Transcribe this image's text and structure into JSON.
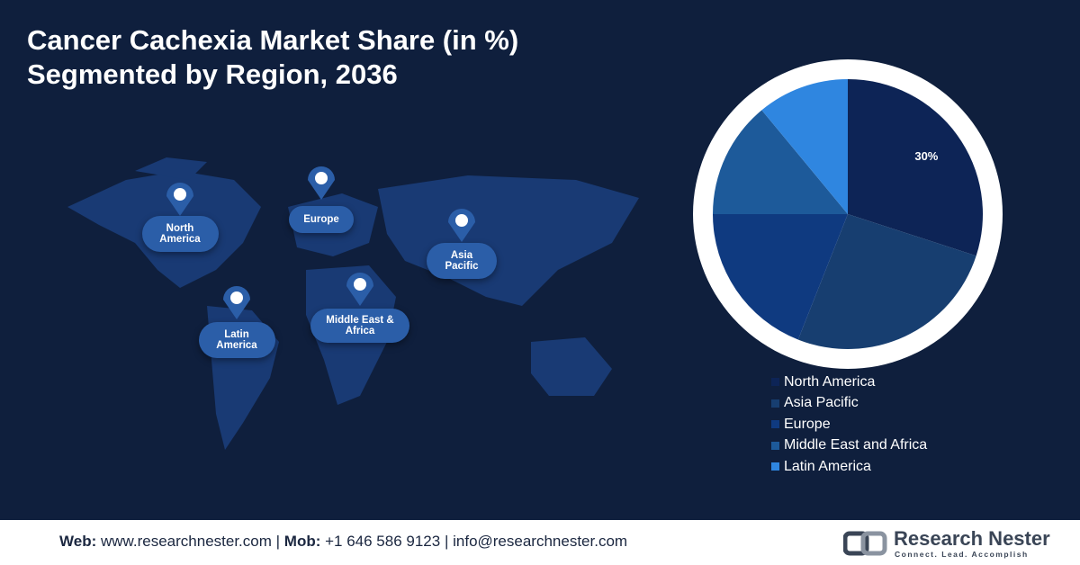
{
  "chart_data": {
    "type": "pie",
    "title_lines": [
      "Cancer Cachexia Market Share (in %)",
      "Segmented by Region, 2036"
    ],
    "categories": [
      "North America",
      "Asia Pacific",
      "Europe",
      "Middle East and Africa",
      "Latin America"
    ],
    "values": [
      30,
      26,
      19,
      14,
      11
    ],
    "value_labels": [
      "30%",
      null,
      null,
      null,
      null
    ],
    "colors": [
      "#0d2456",
      "#173e70",
      "#0f3a80",
      "#1d5a9a",
      "#2f86e0"
    ]
  },
  "map": {
    "labels": [
      "North America",
      "Europe",
      "Asia Pacific",
      "Middle East & Africa",
      "Latin America"
    ]
  },
  "footer": {
    "web_label": "Web:",
    "web": "www.researchnester.com",
    "mob_label": "Mob:",
    "mob": "+1 646 586 9123",
    "separator": "|",
    "email": "info@researchnester.com",
    "logo_name": "Research Nester",
    "logo_tagline": "Connect. Lead. Accomplish"
  }
}
